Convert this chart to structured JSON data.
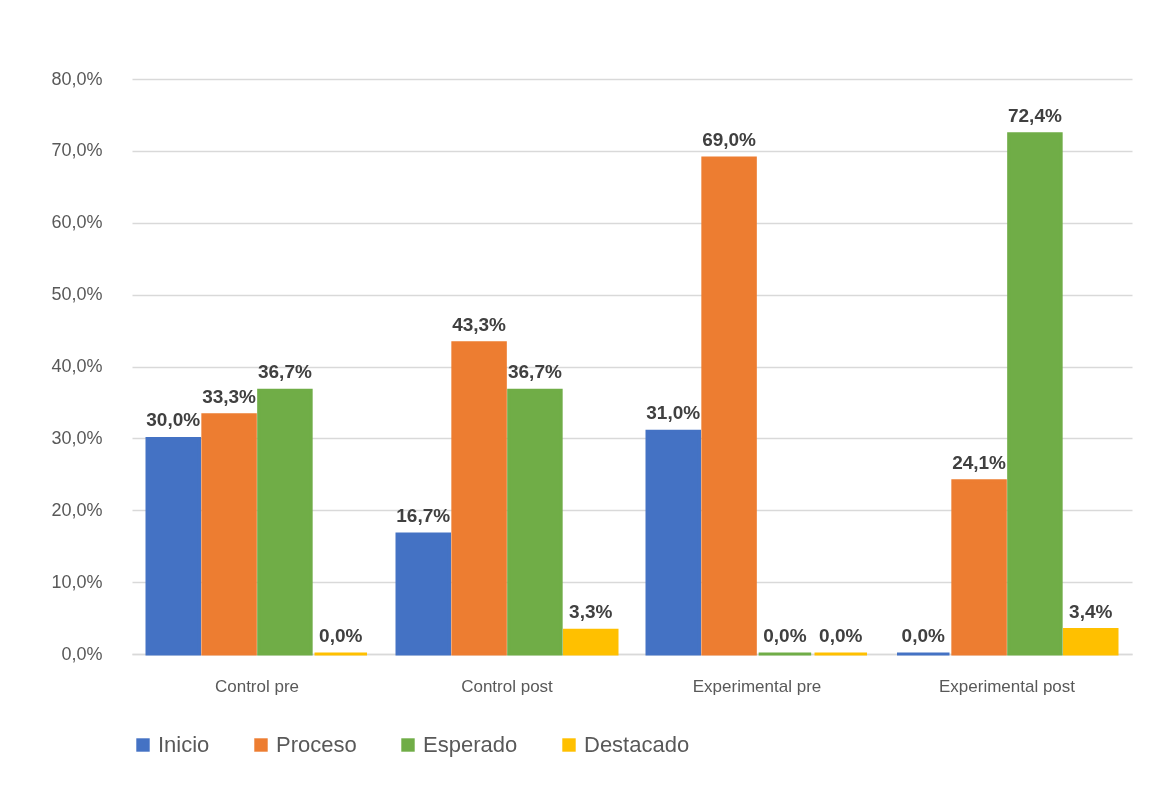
{
  "chart_data": {
    "type": "bar",
    "categories": [
      "Control pre",
      "Control post",
      "Experimental pre",
      "Experimental post"
    ],
    "series": [
      {
        "name": "Inicio",
        "color": "#4472c4",
        "values": [
          30.0,
          16.7,
          31.0,
          0.0
        ],
        "value_labels": [
          "30,0%",
          "16,7%",
          "31,0%",
          "0,0%"
        ]
      },
      {
        "name": "Proceso",
        "color": "#ed7d31",
        "values": [
          33.3,
          43.3,
          69.0,
          24.1
        ],
        "value_labels": [
          "33,3%",
          "43,3%",
          "69,0%",
          "24,1%"
        ]
      },
      {
        "name": "Esperado",
        "color": "#70ad47",
        "values": [
          36.7,
          36.7,
          0.0,
          72.4
        ],
        "value_labels": [
          "36,7%",
          "36,7%",
          "0,0%",
          "72,4%"
        ]
      },
      {
        "name": "Destacado",
        "color": "#ffc000",
        "values": [
          0.0,
          3.3,
          0.0,
          3.4
        ],
        "value_labels": [
          "0,0%",
          "3,3%",
          "0,0%",
          "3,4%"
        ]
      }
    ],
    "ylim": [
      0,
      80
    ],
    "yticks": [
      {
        "value": 0,
        "label": "0,0%"
      },
      {
        "value": 10,
        "label": "10,0%"
      },
      {
        "value": 20,
        "label": "20,0%"
      },
      {
        "value": 30,
        "label": "30,0%"
      },
      {
        "value": 40,
        "label": "40,0%"
      },
      {
        "value": 50,
        "label": "50,0%"
      },
      {
        "value": 60,
        "label": "60,0%"
      },
      {
        "value": 70,
        "label": "70,0%"
      },
      {
        "value": 80,
        "label": "80,0%"
      }
    ],
    "grid": "y",
    "legend": "bottom"
  }
}
